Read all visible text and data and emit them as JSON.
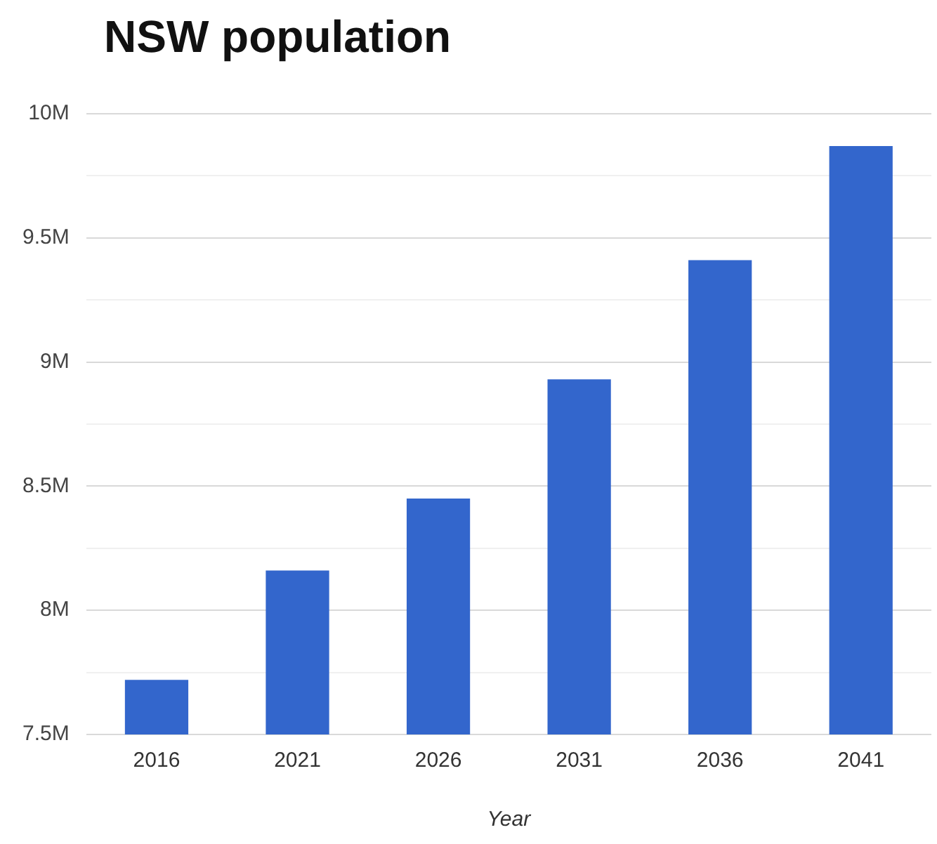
{
  "chart_data": {
    "type": "bar",
    "title": "NSW population",
    "xlabel": "Year",
    "categories": [
      "2016",
      "2021",
      "2026",
      "2031",
      "2036",
      "2041"
    ],
    "values": [
      7.72,
      8.16,
      8.45,
      8.93,
      9.41,
      9.87
    ],
    "color": "#3366cc",
    "ylim": [
      7.5,
      10
    ],
    "yticks": [
      {
        "value": 7.5,
        "label": "7.5M"
      },
      {
        "value": 7.75,
        "label": null
      },
      {
        "value": 8,
        "label": "8M"
      },
      {
        "value": 8.25,
        "label": null
      },
      {
        "value": 8.5,
        "label": "8.5M"
      },
      {
        "value": 8.75,
        "label": null
      },
      {
        "value": 9,
        "label": "9M"
      },
      {
        "value": 9.25,
        "label": null
      },
      {
        "value": 9.5,
        "label": "9.5M"
      },
      {
        "value": 9.75,
        "label": null
      },
      {
        "value": 10,
        "label": "10M"
      }
    ],
    "grid": "y",
    "legend": false
  }
}
